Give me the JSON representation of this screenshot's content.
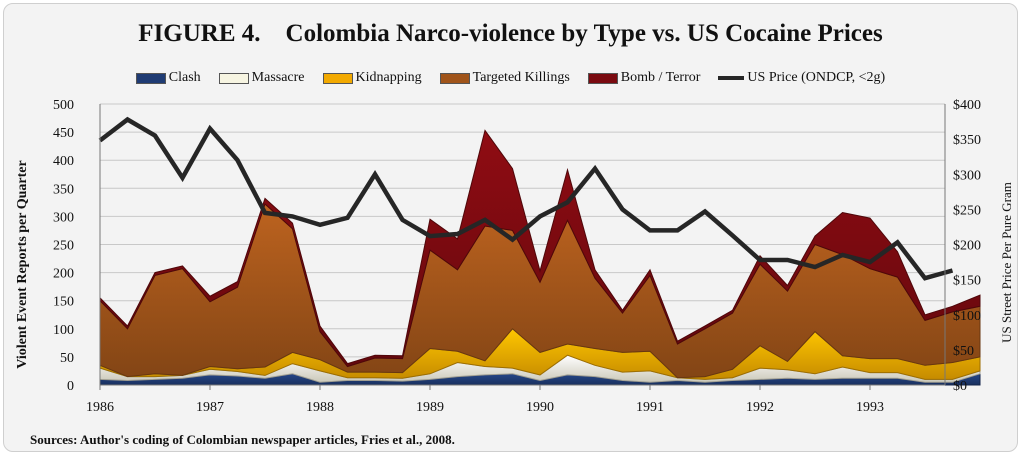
{
  "title": "FIGURE 4.    Colombia Narco-violence by Type vs. US Cocaine Prices",
  "source": "Sources: Author's coding of Colombian newspaper articles, Fries et al., 2008.",
  "legend": [
    {
      "label": "Clash",
      "color": "#1f3b73"
    },
    {
      "label": "Massacre",
      "color": "#f7f5e2"
    },
    {
      "label": "Kidnapping",
      "color": "#f2a900"
    },
    {
      "label": "Targeted Killings",
      "color": "#a0541a"
    },
    {
      "label": "Bomb / Terror",
      "color": "#7a0a10"
    },
    {
      "label": "US Price (ONDCP, <2g)",
      "color": "#262626"
    }
  ],
  "chart_data": {
    "type": "area",
    "title": "FIGURE 4.    Colombia Narco-violence by Type vs. US Cocaine Prices",
    "xlabel": "",
    "ylabel": "Violent Event Reports per Quarter",
    "y2label": "US Street Price Per Pure Gram",
    "ylim": [
      0,
      500
    ],
    "y2lim": [
      0,
      400
    ],
    "yticks": [
      "0",
      "50",
      "100",
      "150",
      "200",
      "250",
      "300",
      "350",
      "400",
      "450",
      "500"
    ],
    "y2ticks": [
      "$0",
      "$50",
      "$100",
      "$150",
      "$200",
      "$250",
      "$300",
      "$350",
      "$400"
    ],
    "xticks": [
      "1986",
      "1987",
      "1988",
      "1989",
      "1990",
      "1991",
      "1992",
      "1993"
    ],
    "x_start_year": 1986,
    "periods_per_year": 4,
    "stacked": true,
    "series": [
      {
        "name": "Clash",
        "color": "#1f3b73",
        "values": [
          10,
          8,
          10,
          12,
          18,
          16,
          12,
          20,
          5,
          8,
          8,
          7,
          10,
          15,
          18,
          20,
          8,
          18,
          15,
          8,
          5,
          8,
          5,
          8,
          10,
          12,
          10,
          12,
          12,
          12,
          5,
          5,
          20
        ]
      },
      {
        "name": "Massacre",
        "color": "#f7f5e2",
        "values": [
          20,
          7,
          5,
          5,
          10,
          8,
          5,
          18,
          20,
          5,
          5,
          5,
          10,
          25,
          15,
          10,
          10,
          35,
          20,
          15,
          20,
          5,
          5,
          5,
          20,
          15,
          10,
          20,
          10,
          10,
          5,
          5,
          5
        ]
      },
      {
        "name": "Kidnapping",
        "color": "#f2a900",
        "values": [
          5,
          0,
          5,
          0,
          5,
          5,
          15,
          20,
          20,
          10,
          10,
          10,
          45,
          20,
          10,
          70,
          40,
          20,
          30,
          35,
          35,
          0,
          5,
          15,
          40,
          15,
          75,
          20,
          25,
          25,
          25,
          30,
          25
        ]
      },
      {
        "name": "Targeted Killings",
        "color": "#a0541a",
        "values": [
          115,
          85,
          175,
          190,
          115,
          145,
          290,
          220,
          50,
          10,
          25,
          25,
          175,
          145,
          240,
          175,
          125,
          220,
          125,
          70,
          135,
          60,
          85,
          100,
          145,
          125,
          155,
          180,
          160,
          145,
          80,
          90,
          90
        ]
      },
      {
        "name": "Bomb / Terror",
        "color": "#7a0a10",
        "values": [
          5,
          5,
          5,
          5,
          10,
          10,
          10,
          10,
          10,
          5,
          5,
          5,
          55,
          55,
          170,
          110,
          20,
          90,
          15,
          5,
          10,
          5,
          5,
          5,
          15,
          10,
          15,
          75,
          90,
          45,
          10,
          10,
          20
        ]
      },
      {
        "name": "US Price (ONDCP, <2g)",
        "axis": "right",
        "line": true,
        "color": "#262626",
        "values": [
          348,
          378,
          355,
          295,
          365,
          320,
          245,
          240,
          228,
          238,
          300,
          235,
          212,
          215,
          235,
          207,
          240,
          260,
          308,
          250,
          220,
          220,
          247,
          213,
          178,
          178,
          168,
          185,
          175,
          203,
          152,
          163
        ]
      }
    ]
  }
}
